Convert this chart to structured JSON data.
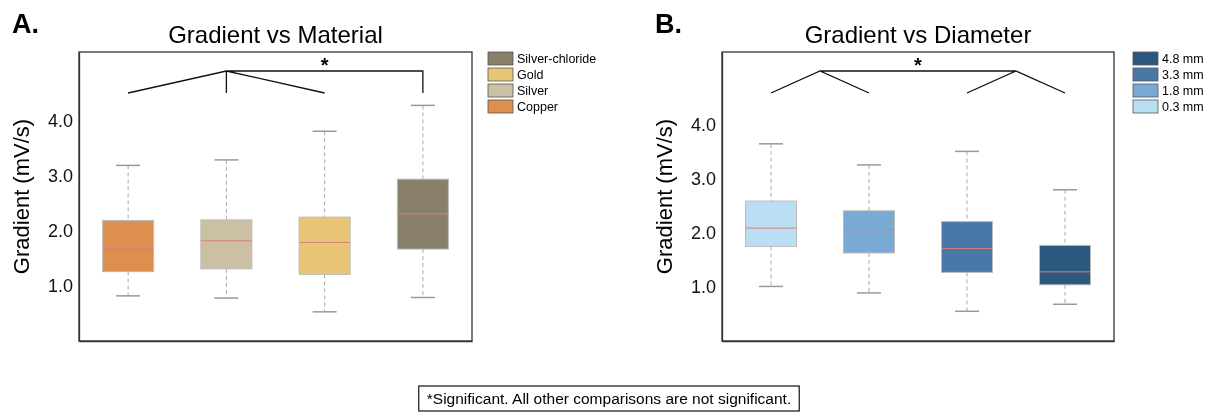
{
  "chart_data": [
    {
      "type": "box",
      "title": "Gradient vs Material",
      "ylabel": "Gradient (mV/s)",
      "annotations": [
        "A.",
        "*",
        "*Significant. All other comparisons are not significant."
      ],
      "categories": [
        null,
        null,
        null,
        null
      ],
      "ylim": [
        0,
        5.25
      ],
      "yticks": [
        {
          "value": 1,
          "label": "1.0"
        },
        {
          "value": 2,
          "label": "2.0"
        },
        {
          "value": 3,
          "label": "3.0"
        },
        {
          "value": 4,
          "label": "4.0"
        }
      ],
      "tick_labels": "y",
      "grid": false,
      "legend": "right",
      "series": [
        {
          "name": "Silver-chloride",
          "color": "#89806b",
          "boxes": [
            null,
            null,
            null,
            {
              "low": 0.79,
              "q1": 1.67,
              "median": 2.31,
              "q3": 2.94,
              "high": 4.28
            }
          ]
        },
        {
          "name": "Gold",
          "color": "#e8c574",
          "boxes": [
            null,
            null,
            {
              "low": 0.53,
              "q1": 1.21,
              "median": 1.79,
              "q3": 2.25,
              "high": 3.81
            },
            null
          ]
        },
        {
          "name": "Silver",
          "color": "#cbc0a3",
          "boxes": [
            null,
            {
              "low": 0.78,
              "q1": 1.31,
              "median": 1.82,
              "q3": 2.2,
              "high": 3.29
            },
            null,
            null
          ]
        },
        {
          "name": "Copper",
          "color": "#dc8f4f",
          "boxes": [
            {
              "low": 0.82,
              "q1": 1.26,
              "median": 1.68,
              "q3": 2.19,
              "high": 3.19
            },
            null,
            null,
            null
          ]
        }
      ]
    },
    {
      "type": "box",
      "title": "Gradient vs Diameter",
      "ylabel": "Gradient (mV/s)",
      "annotations": [
        "B.",
        "*"
      ],
      "categories": [
        null,
        null,
        null,
        null
      ],
      "ylim": [
        0,
        5.35
      ],
      "yticks": [
        {
          "value": 1,
          "label": "1.0"
        },
        {
          "value": 2,
          "label": "2.0"
        },
        {
          "value": 3,
          "label": "3.0"
        },
        {
          "value": 4,
          "label": "4.0"
        }
      ],
      "tick_labels": "y",
      "grid": false,
      "legend": "right",
      "series": [
        {
          "name": "4.8 mm",
          "color": "#2c5880",
          "boxes": [
            null,
            null,
            null,
            {
              "low": 0.68,
              "q1": 1.04,
              "median": 1.28,
              "q3": 1.77,
              "high": 2.8
            }
          ]
        },
        {
          "name": "3.3 mm",
          "color": "#4878a8",
          "boxes": [
            null,
            null,
            {
              "low": 0.55,
              "q1": 1.27,
              "median": 1.71,
              "q3": 2.21,
              "high": 3.51
            },
            null
          ]
        },
        {
          "name": "1.8 mm",
          "color": "#79aad3",
          "boxes": [
            null,
            {
              "low": 0.89,
              "q1": 1.63,
              "median": 2.06,
              "q3": 2.41,
              "high": 3.26
            },
            null,
            null
          ]
        },
        {
          "name": "0.3 mm",
          "color": "#bbdff2",
          "boxes": [
            {
              "low": 1.01,
              "q1": 1.75,
              "median": 2.09,
              "q3": 2.59,
              "high": 3.65
            },
            null,
            null,
            null
          ]
        }
      ]
    }
  ]
}
